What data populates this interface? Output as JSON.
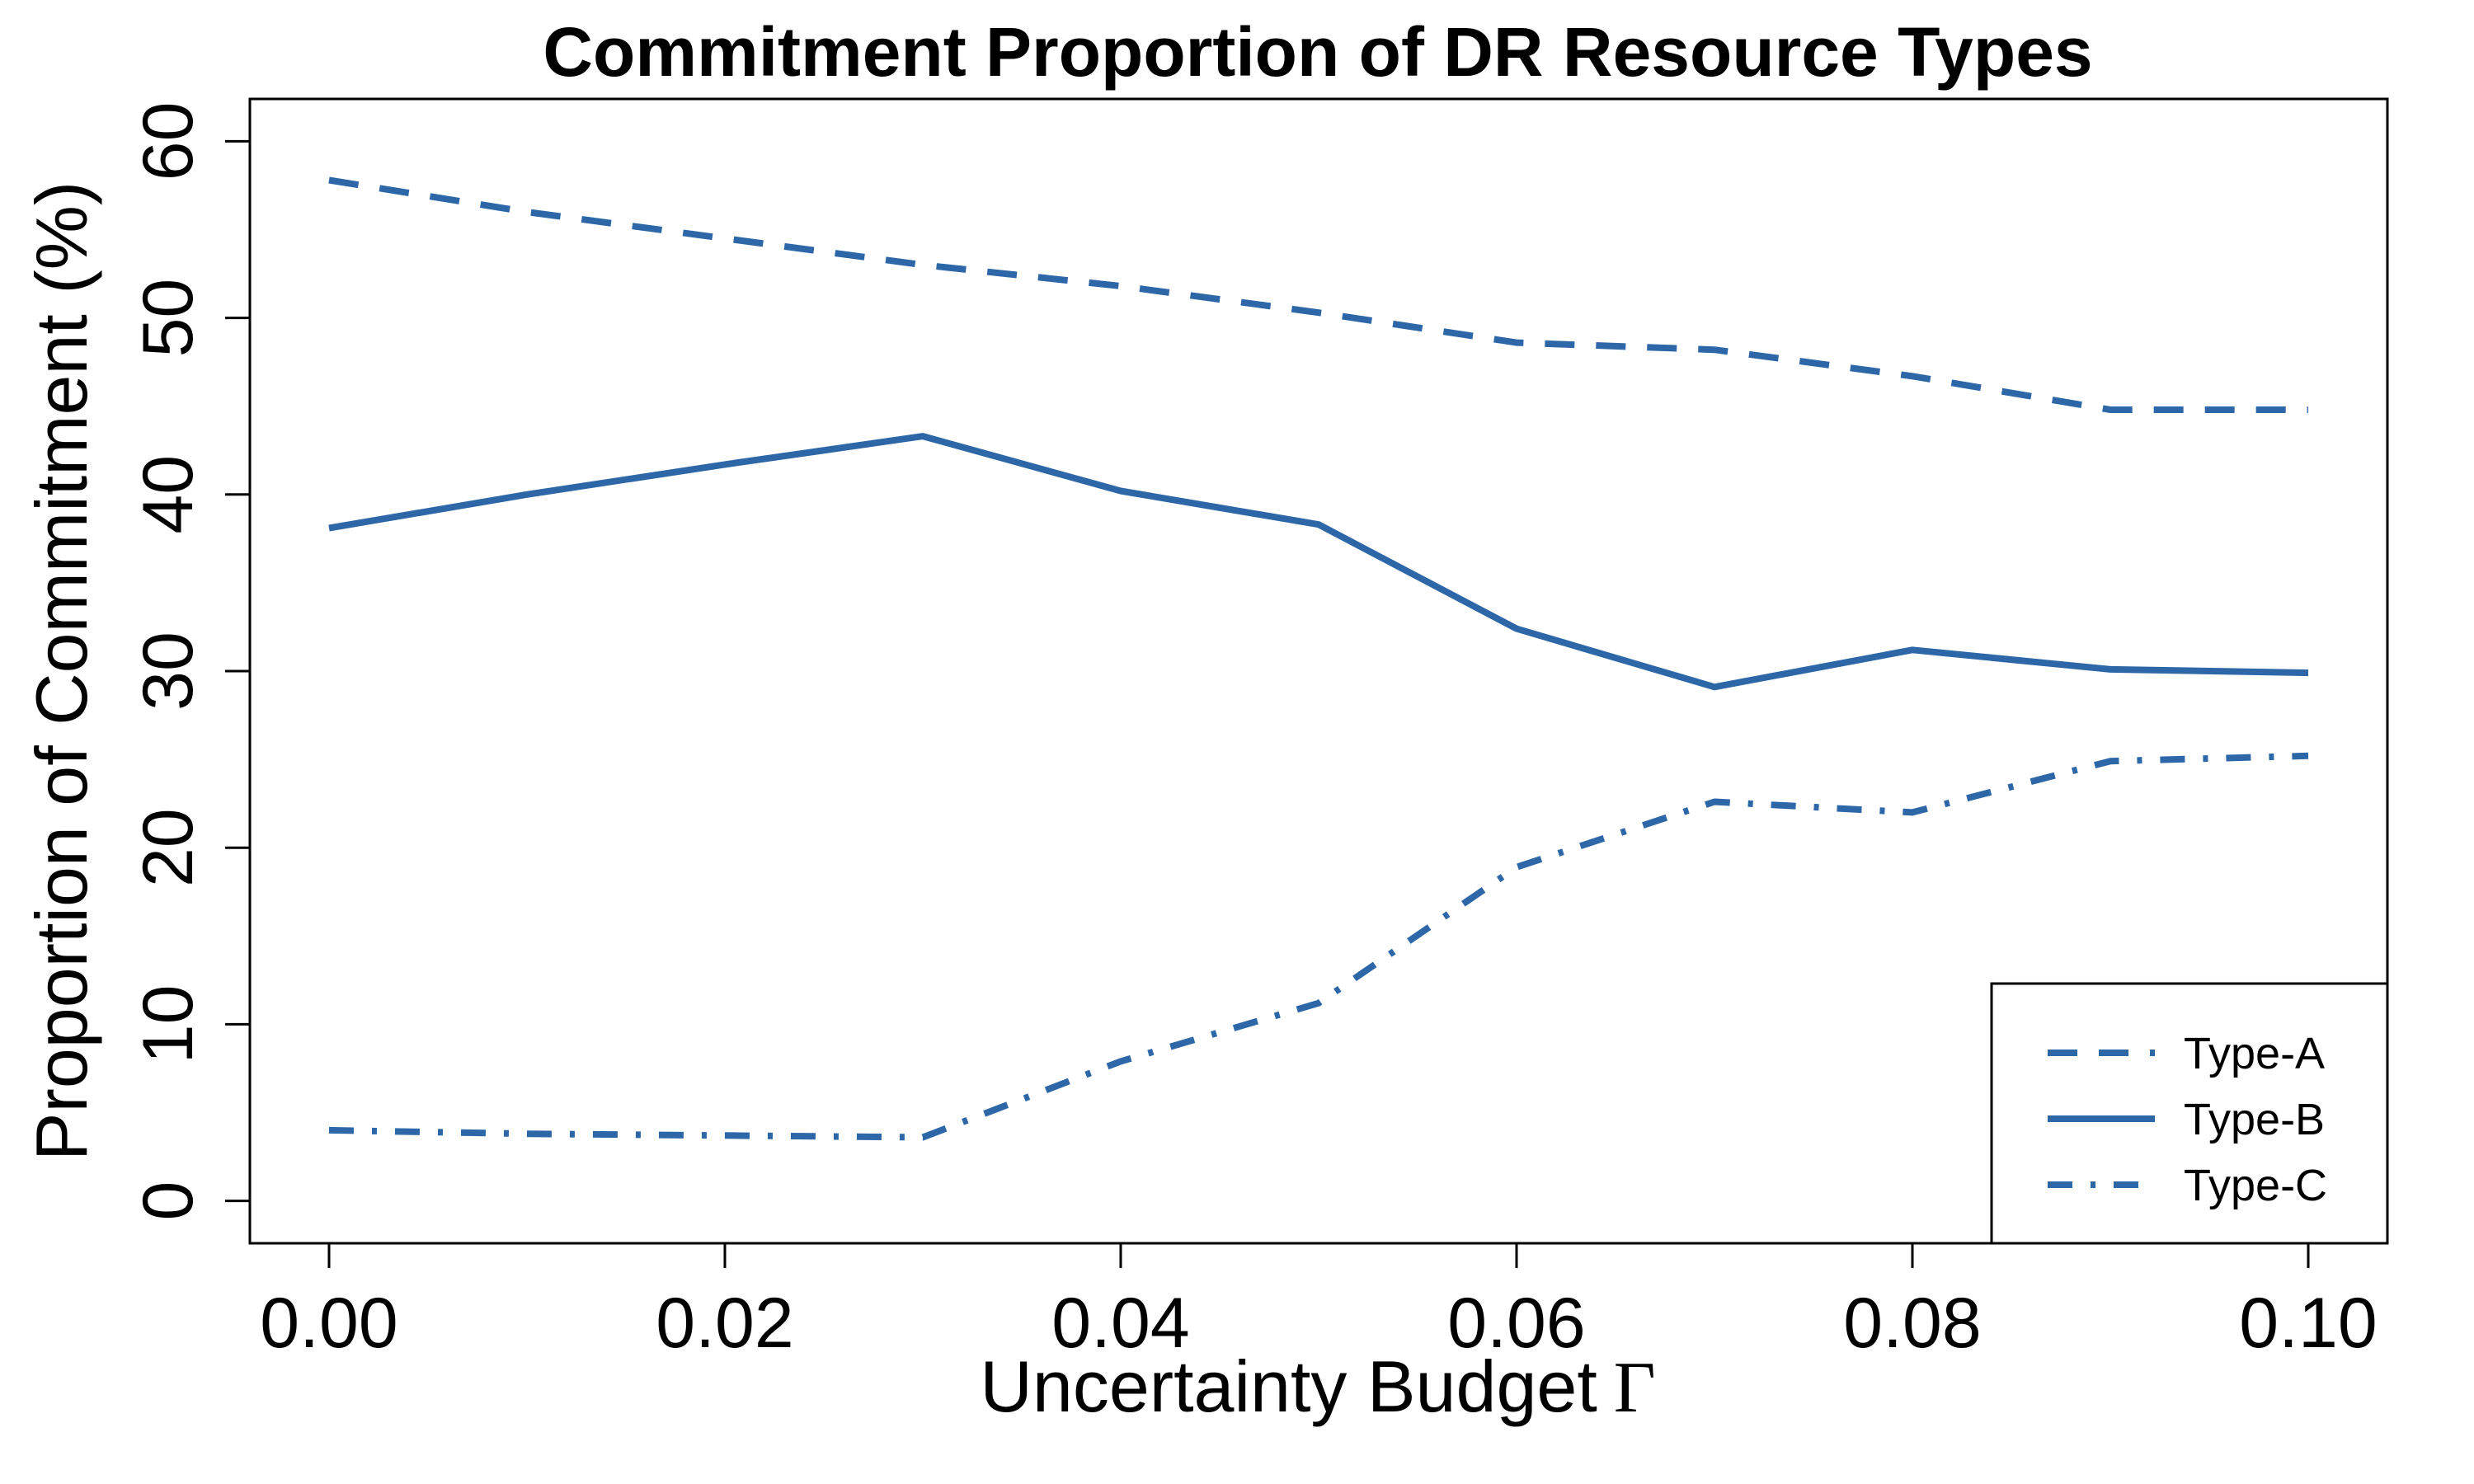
{
  "chart_data": {
    "type": "line",
    "title": "Commitment Proportion of DR Resource Types",
    "xlabel": "Uncertainty Budget",
    "xlabel_symbol": "Γ",
    "ylabel": "Proportion of Commitment (%)",
    "x": [
      0.0,
      0.01,
      0.02,
      0.03,
      0.04,
      0.05,
      0.06,
      0.07,
      0.08,
      0.09,
      0.1
    ],
    "xticks": [
      "0.00",
      "0.02",
      "0.04",
      "0.06",
      "0.08",
      "0.10"
    ],
    "xtick_values": [
      0.0,
      0.02,
      0.04,
      0.06,
      0.08,
      0.1
    ],
    "yticks": [
      "0",
      "10",
      "20",
      "30",
      "40",
      "50",
      "60"
    ],
    "ytick_values": [
      0,
      10,
      20,
      30,
      40,
      50,
      60
    ],
    "xlim": [
      -0.004,
      0.104
    ],
    "ylim": [
      -2.4,
      62.4
    ],
    "grid": false,
    "legend_position": "bottom-right",
    "color": "#2E67A8",
    "series": [
      {
        "name": "Type-A",
        "style": "dashed",
        "values": [
          57.8,
          56.0,
          54.5,
          53.0,
          51.8,
          50.3,
          48.6,
          48.2,
          46.7,
          44.8,
          44.8
        ]
      },
      {
        "name": "Type-B",
        "style": "solid",
        "values": [
          38.1,
          40.0,
          41.7,
          43.3,
          40.2,
          38.3,
          32.4,
          29.1,
          31.2,
          30.1,
          29.9
        ]
      },
      {
        "name": "Type-C",
        "style": "dashdot",
        "values": [
          4.0,
          3.8,
          3.7,
          3.6,
          7.9,
          11.2,
          18.9,
          22.6,
          22.0,
          24.9,
          25.2
        ]
      }
    ]
  }
}
